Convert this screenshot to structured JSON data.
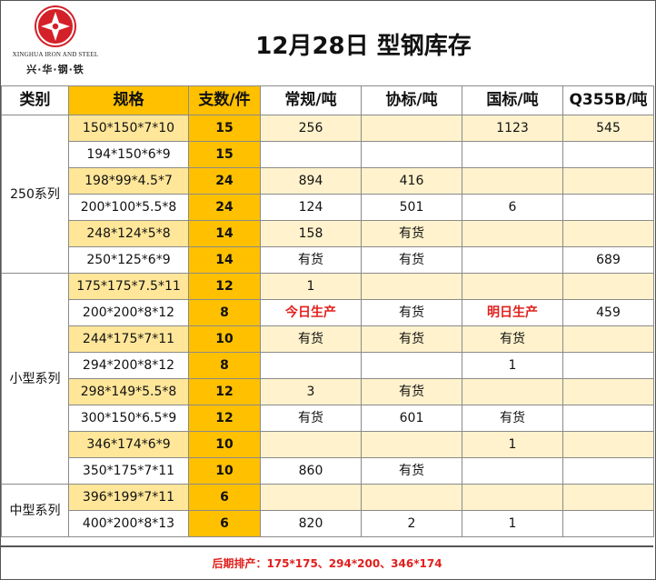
{
  "header": {
    "logo_en": "XINGHUA IRON AND STEEL",
    "logo_cn": "兴·华·钢·铁",
    "title": "12月28日 型钢库存"
  },
  "columns": [
    "类别",
    "规格",
    "支数/件",
    "常规/吨",
    "协标/吨",
    "国标/吨",
    "Q355B/吨"
  ],
  "groups": [
    {
      "category": "250系列",
      "rows": [
        {
          "spec": "150*150*7*10",
          "pcs": "15",
          "regular": "256",
          "assoc": "",
          "national": "1123",
          "q355b": "545"
        },
        {
          "spec": "194*150*6*9",
          "pcs": "15",
          "regular": "",
          "assoc": "",
          "national": "",
          "q355b": ""
        },
        {
          "spec": "198*99*4.5*7",
          "pcs": "24",
          "regular": "894",
          "assoc": "416",
          "national": "",
          "q355b": ""
        },
        {
          "spec": "200*100*5.5*8",
          "pcs": "24",
          "regular": "124",
          "assoc": "501",
          "national": "6",
          "q355b": ""
        },
        {
          "spec": "248*124*5*8",
          "pcs": "14",
          "regular": "158",
          "assoc": "有货",
          "national": "",
          "q355b": ""
        },
        {
          "spec": "250*125*6*9",
          "pcs": "14",
          "regular": "有货",
          "assoc": "有货",
          "national": "",
          "q355b": "689"
        }
      ]
    },
    {
      "category": "小型系列",
      "rows": [
        {
          "spec": "175*175*7.5*11",
          "pcs": "12",
          "regular": "1",
          "assoc": "",
          "national": "",
          "q355b": ""
        },
        {
          "spec": "200*200*8*12",
          "pcs": "8",
          "regular": "今日生产",
          "assoc": "有货",
          "national": "明日生产",
          "q355b": "459"
        },
        {
          "spec": "244*175*7*11",
          "pcs": "10",
          "regular": "有货",
          "assoc": "有货",
          "national": "有货",
          "q355b": ""
        },
        {
          "spec": "294*200*8*12",
          "pcs": "8",
          "regular": "",
          "assoc": "",
          "national": "1",
          "q355b": ""
        },
        {
          "spec": "298*149*5.5*8",
          "pcs": "12",
          "regular": "3",
          "assoc": "有货",
          "national": "",
          "q355b": ""
        },
        {
          "spec": "300*150*6.5*9",
          "pcs": "12",
          "regular": "有货",
          "assoc": "601",
          "national": "有货",
          "q355b": ""
        },
        {
          "spec": "346*174*6*9",
          "pcs": "10",
          "regular": "",
          "assoc": "",
          "national": "1",
          "q355b": ""
        },
        {
          "spec": "350*175*7*11",
          "pcs": "10",
          "regular": "860",
          "assoc": "有货",
          "national": "",
          "q355b": ""
        }
      ]
    },
    {
      "category": "中型系列",
      "rows": [
        {
          "spec": "396*199*7*11",
          "pcs": "6",
          "regular": "",
          "assoc": "",
          "national": "",
          "q355b": ""
        },
        {
          "spec": "400*200*8*13",
          "pcs": "6",
          "regular": "820",
          "assoc": "2",
          "national": "1",
          "q355b": ""
        }
      ]
    }
  ],
  "highlight_values": [
    "今日生产",
    "明日生产"
  ],
  "footer": "后期排产：175*175、294*200、346*174",
  "colors": {
    "gold": "#ffc000",
    "light_gold": "#ffe699",
    "pale_yellow": "#fff2cc",
    "red": "#e0201d",
    "logo_red": "#d42029"
  }
}
